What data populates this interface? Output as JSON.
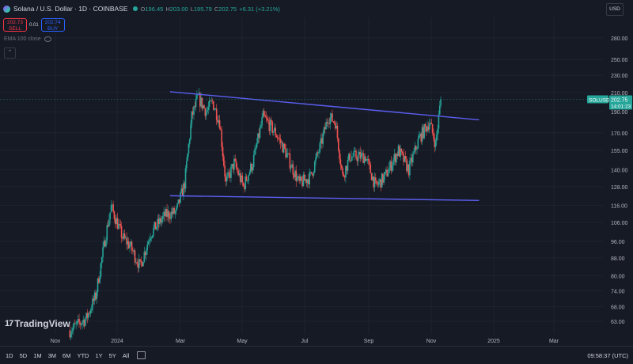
{
  "header": {
    "symbol": "Solana / U.S. Dollar · 1D · COINBASE",
    "ohlc": [
      {
        "key": "O",
        "value": "196.45"
      },
      {
        "key": "H",
        "value": "203.00"
      },
      {
        "key": "L",
        "value": "195.79"
      },
      {
        "key": "C",
        "value": "202.75"
      },
      {
        "key": "",
        "value": "+6.31 (+3.21%)"
      }
    ],
    "currency": "USD"
  },
  "trade": {
    "sell_price": "202.73",
    "sell_label": "SELL",
    "spread": "0.01",
    "buy_price": "202.74",
    "buy_label": "BUY"
  },
  "indicator": {
    "label": "EMA 100 close"
  },
  "price_tag": {
    "symbol": "SOLUSD",
    "price": "202.75",
    "countdown": "14:01:23"
  },
  "brand": {
    "name": "TradingView"
  },
  "bottom_bar": {
    "timeframes": [
      "1D",
      "5D",
      "1M",
      "3M",
      "6M",
      "YTD",
      "1Y",
      "5Y",
      "All"
    ],
    "clock": "09:58:37 (UTC)"
  },
  "colors": {
    "background": "#161a25",
    "up": "#26a69a",
    "down": "#ef5350",
    "trendline": "#5b5ff0"
  },
  "chart_data": {
    "type": "candlestick",
    "scale": "log",
    "y_ticks": [
      63.0,
      68.0,
      74.0,
      80.0,
      88.0,
      96.0,
      106.0,
      116.0,
      128.0,
      140.0,
      155.0,
      170.0,
      190.0,
      210.0,
      230.0,
      250.0,
      280.0
    ],
    "y_tick_labels": [
      "63.00",
      "68.00",
      "74.00",
      "80.00",
      "88.00",
      "96.00",
      "106.00",
      "116.00",
      "128.00",
      "140.00",
      "155.00",
      "170.00",
      "190.00",
      "210.00",
      "230.00",
      "250.00",
      "280.00"
    ],
    "x_ticks": [
      "Nov",
      "2024",
      "Mar",
      "May",
      "Jul",
      "Sep",
      "Nov",
      "2025",
      "Mar"
    ],
    "trendlines": [
      {
        "from": [
          "2024-02-20",
          211
        ],
        "to": [
          "2024-12-15",
          182
        ]
      },
      {
        "from": [
          "2024-02-20",
          122
        ],
        "to": [
          "2024-12-15",
          119
        ]
      }
    ],
    "series": [
      {
        "date": "2023-11-15",
        "close": 60
      },
      {
        "date": "2023-12-01",
        "close": 64
      },
      {
        "date": "2023-12-10",
        "close": 72
      },
      {
        "date": "2023-12-20",
        "close": 100
      },
      {
        "date": "2023-12-25",
        "close": 115
      },
      {
        "date": "2024-01-05",
        "close": 98
      },
      {
        "date": "2024-01-12",
        "close": 94
      },
      {
        "date": "2024-01-22",
        "close": 84
      },
      {
        "date": "2024-02-01",
        "close": 100
      },
      {
        "date": "2024-02-15",
        "close": 110
      },
      {
        "date": "2024-02-26",
        "close": 112
      },
      {
        "date": "2024-03-05",
        "close": 130
      },
      {
        "date": "2024-03-12",
        "close": 185
      },
      {
        "date": "2024-03-18",
        "close": 205
      },
      {
        "date": "2024-03-26",
        "close": 190
      },
      {
        "date": "2024-04-01",
        "close": 200
      },
      {
        "date": "2024-04-08",
        "close": 180
      },
      {
        "date": "2024-04-14",
        "close": 130
      },
      {
        "date": "2024-04-22",
        "close": 145
      },
      {
        "date": "2024-05-01",
        "close": 128
      },
      {
        "date": "2024-05-10",
        "close": 145
      },
      {
        "date": "2024-05-20",
        "close": 185
      },
      {
        "date": "2024-06-01",
        "close": 170
      },
      {
        "date": "2024-06-10",
        "close": 155
      },
      {
        "date": "2024-06-24",
        "close": 130
      },
      {
        "date": "2024-07-05",
        "close": 135
      },
      {
        "date": "2024-07-15",
        "close": 160
      },
      {
        "date": "2024-07-22",
        "close": 185
      },
      {
        "date": "2024-07-29",
        "close": 180
      },
      {
        "date": "2024-08-05",
        "close": 135
      },
      {
        "date": "2024-08-12",
        "close": 150
      },
      {
        "date": "2024-08-20",
        "close": 150
      },
      {
        "date": "2024-08-27",
        "close": 150
      },
      {
        "date": "2024-09-06",
        "close": 128
      },
      {
        "date": "2024-09-15",
        "close": 135
      },
      {
        "date": "2024-09-28",
        "close": 155
      },
      {
        "date": "2024-10-08",
        "close": 140
      },
      {
        "date": "2024-10-18",
        "close": 165
      },
      {
        "date": "2024-10-28",
        "close": 180
      },
      {
        "date": "2024-11-03",
        "close": 160
      },
      {
        "date": "2024-11-08",
        "close": 202.75
      }
    ]
  }
}
